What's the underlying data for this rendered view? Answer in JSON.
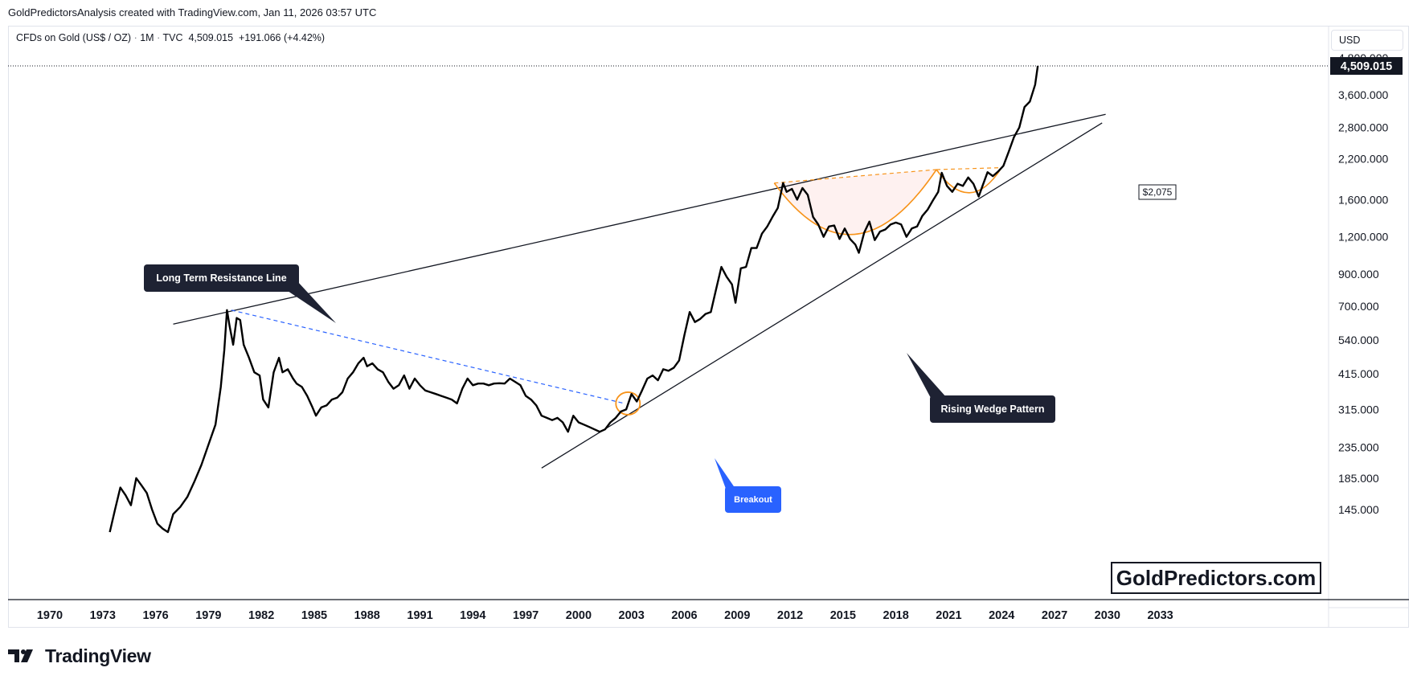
{
  "header": {
    "credit": "GoldPredictorsAnalysis created with TradingView.com, Jan 11, 2026 03:57 UTC"
  },
  "symbol_bar": {
    "name": "CFDs on Gold (US$ / OZ)",
    "interval": "1M",
    "source": "TVC",
    "last_price": "4,509.015",
    "change": "+191.066",
    "change_pct": "(+4.42%)"
  },
  "currency_button": "USD",
  "watermark": "GoldPredictors.com",
  "footer": {
    "brand": "TradingView"
  },
  "colors": {
    "price_line": "#000000",
    "trendline": "#131722",
    "dashed_blue": "#2962ff",
    "cup_orange": "#f7931a",
    "cup_fill": "#fde8e6",
    "callout_dark": "#1e2233",
    "callout_blue": "#2962ff"
  },
  "chart_data": {
    "type": "line",
    "scale": "log",
    "y_ticks": [
      "4,800.000",
      "3,600.000",
      "2,800.000",
      "2,200.000",
      "1,600.000",
      "1,200.000",
      "900.000",
      "700.000",
      "540.000",
      "415.000",
      "315.000",
      "235.000",
      "185.000",
      "145.000"
    ],
    "y_tick_values": [
      4800,
      3600,
      2800,
      2200,
      1600,
      1200,
      900,
      700,
      540,
      415,
      315,
      235,
      185,
      145
    ],
    "x_ticks": [
      "1970",
      "1973",
      "1976",
      "1979",
      "1982",
      "1985",
      "1988",
      "1991",
      "1994",
      "1997",
      "2000",
      "2003",
      "2006",
      "2009",
      "2012",
      "2015",
      "2018",
      "2021",
      "2024",
      "2027",
      "2030",
      "2033"
    ],
    "x_tick_years": [
      1970,
      1973,
      1976,
      1979,
      1982,
      1985,
      1988,
      1991,
      1994,
      1997,
      2000,
      2003,
      2006,
      2009,
      2012,
      2015,
      2018,
      2021,
      2024,
      2027,
      2030,
      2033
    ],
    "ylim": [
      118,
      5000
    ],
    "xlim": [
      1967.6,
      2034.6
    ],
    "last_price_label": "4,509.015",
    "last_price": 4509.015,
    "series": [
      {
        "points": [
          [
            1973.4,
            118
          ],
          [
            1973.7,
            145
          ],
          [
            1974.0,
            172
          ],
          [
            1974.3,
            162
          ],
          [
            1974.6,
            150
          ],
          [
            1974.9,
            185
          ],
          [
            1975.2,
            175
          ],
          [
            1975.5,
            165
          ],
          [
            1975.8,
            145
          ],
          [
            1976.1,
            130
          ],
          [
            1976.4,
            125
          ],
          [
            1976.7,
            118
          ],
          [
            1977.0,
            140
          ],
          [
            1977.4,
            148
          ],
          [
            1977.8,
            160
          ],
          [
            1978.2,
            180
          ],
          [
            1978.6,
            205
          ],
          [
            1979.0,
            240
          ],
          [
            1979.4,
            280
          ],
          [
            1979.7,
            375
          ],
          [
            1979.9,
            500
          ],
          [
            1980.05,
            680
          ],
          [
            1980.2,
            600
          ],
          [
            1980.4,
            520
          ],
          [
            1980.6,
            640
          ],
          [
            1980.8,
            630
          ],
          [
            1981.0,
            520
          ],
          [
            1981.3,
            470
          ],
          [
            1981.6,
            420
          ],
          [
            1981.9,
            410
          ],
          [
            1982.1,
            340
          ],
          [
            1982.4,
            320
          ],
          [
            1982.7,
            420
          ],
          [
            1983.0,
            470
          ],
          [
            1983.2,
            420
          ],
          [
            1983.5,
            430
          ],
          [
            1983.8,
            400
          ],
          [
            1984.0,
            385
          ],
          [
            1984.3,
            375
          ],
          [
            1984.6,
            350
          ],
          [
            1984.9,
            320
          ],
          [
            1985.1,
            300
          ],
          [
            1985.4,
            320
          ],
          [
            1985.7,
            325
          ],
          [
            1986.0,
            340
          ],
          [
            1986.3,
            345
          ],
          [
            1986.6,
            360
          ],
          [
            1986.9,
            400
          ],
          [
            1987.2,
            420
          ],
          [
            1987.5,
            450
          ],
          [
            1987.8,
            470
          ],
          [
            1988.0,
            440
          ],
          [
            1988.3,
            450
          ],
          [
            1988.6,
            430
          ],
          [
            1988.9,
            420
          ],
          [
            1989.2,
            390
          ],
          [
            1989.5,
            370
          ],
          [
            1989.8,
            380
          ],
          [
            1990.1,
            410
          ],
          [
            1990.4,
            370
          ],
          [
            1990.7,
            400
          ],
          [
            1991.0,
            380
          ],
          [
            1991.3,
            365
          ],
          [
            1991.6,
            360
          ],
          [
            1991.9,
            355
          ],
          [
            1992.2,
            350
          ],
          [
            1992.5,
            345
          ],
          [
            1992.8,
            340
          ],
          [
            1993.1,
            330
          ],
          [
            1993.4,
            370
          ],
          [
            1993.7,
            400
          ],
          [
            1994.0,
            380
          ],
          [
            1994.3,
            385
          ],
          [
            1994.6,
            385
          ],
          [
            1994.9,
            380
          ],
          [
            1995.2,
            385
          ],
          [
            1995.5,
            386
          ],
          [
            1995.8,
            385
          ],
          [
            1996.1,
            400
          ],
          [
            1996.4,
            390
          ],
          [
            1996.7,
            380
          ],
          [
            1997.0,
            350
          ],
          [
            1997.3,
            340
          ],
          [
            1997.6,
            325
          ],
          [
            1997.9,
            300
          ],
          [
            1998.2,
            295
          ],
          [
            1998.5,
            290
          ],
          [
            1998.8,
            295
          ],
          [
            1999.1,
            285
          ],
          [
            1999.4,
            265
          ],
          [
            1999.7,
            300
          ],
          [
            2000.0,
            285
          ],
          [
            2000.3,
            280
          ],
          [
            2000.6,
            275
          ],
          [
            2000.9,
            270
          ],
          [
            2001.2,
            265
          ],
          [
            2001.5,
            270
          ],
          [
            2001.8,
            285
          ],
          [
            2002.1,
            295
          ],
          [
            2002.4,
            310
          ],
          [
            2002.7,
            315
          ],
          [
            2003.0,
            355
          ],
          [
            2003.3,
            335
          ],
          [
            2003.6,
            365
          ],
          [
            2003.9,
            400
          ],
          [
            2004.2,
            410
          ],
          [
            2004.5,
            395
          ],
          [
            2004.8,
            430
          ],
          [
            2005.1,
            425
          ],
          [
            2005.4,
            435
          ],
          [
            2005.7,
            460
          ],
          [
            2006.0,
            560
          ],
          [
            2006.3,
            670
          ],
          [
            2006.6,
            620
          ],
          [
            2006.9,
            635
          ],
          [
            2007.2,
            660
          ],
          [
            2007.5,
            670
          ],
          [
            2007.8,
            800
          ],
          [
            2008.1,
            950
          ],
          [
            2008.4,
            880
          ],
          [
            2008.7,
            830
          ],
          [
            2008.9,
            720
          ],
          [
            2009.2,
            940
          ],
          [
            2009.5,
            950
          ],
          [
            2009.8,
            1100
          ],
          [
            2010.1,
            1100
          ],
          [
            2010.4,
            1230
          ],
          [
            2010.7,
            1300
          ],
          [
            2011.0,
            1400
          ],
          [
            2011.3,
            1500
          ],
          [
            2011.6,
            1820
          ],
          [
            2011.8,
            1700
          ],
          [
            2012.1,
            1740
          ],
          [
            2012.4,
            1600
          ],
          [
            2012.7,
            1750
          ],
          [
            2013.0,
            1660
          ],
          [
            2013.3,
            1400
          ],
          [
            2013.6,
            1320
          ],
          [
            2013.9,
            1200
          ],
          [
            2014.2,
            1300
          ],
          [
            2014.5,
            1310
          ],
          [
            2014.8,
            1180
          ],
          [
            2015.1,
            1280
          ],
          [
            2015.4,
            1180
          ],
          [
            2015.7,
            1130
          ],
          [
            2015.9,
            1060
          ],
          [
            2016.2,
            1240
          ],
          [
            2016.5,
            1350
          ],
          [
            2016.8,
            1170
          ],
          [
            2017.1,
            1250
          ],
          [
            2017.4,
            1270
          ],
          [
            2017.7,
            1320
          ],
          [
            2018.0,
            1340
          ],
          [
            2018.3,
            1320
          ],
          [
            2018.6,
            1200
          ],
          [
            2018.9,
            1280
          ],
          [
            2019.2,
            1300
          ],
          [
            2019.5,
            1410
          ],
          [
            2019.8,
            1480
          ],
          [
            2020.1,
            1590
          ],
          [
            2020.4,
            1700
          ],
          [
            2020.6,
            1970
          ],
          [
            2020.9,
            1780
          ],
          [
            2021.2,
            1700
          ],
          [
            2021.5,
            1810
          ],
          [
            2021.8,
            1780
          ],
          [
            2022.1,
            1900
          ],
          [
            2022.4,
            1810
          ],
          [
            2022.7,
            1640
          ],
          [
            2022.9,
            1770
          ],
          [
            2023.2,
            1980
          ],
          [
            2023.5,
            1920
          ],
          [
            2023.8,
            1990
          ],
          [
            2024.1,
            2080
          ],
          [
            2024.4,
            2320
          ],
          [
            2024.7,
            2600
          ],
          [
            2025.0,
            2800
          ],
          [
            2025.3,
            3280
          ],
          [
            2025.6,
            3420
          ],
          [
            2025.9,
            3900
          ],
          [
            2026.05,
            4509
          ]
        ]
      }
    ],
    "annotations": [
      {
        "label": "Long Term Resistance Line"
      },
      {
        "label": "Rising Wedge Pattern"
      },
      {
        "label": "Breakout"
      },
      {
        "label": "$2,075"
      }
    ],
    "trendlines": {
      "resistance": [
        [
          1977.0,
          610
        ],
        [
          2029.9,
          3100
        ]
      ],
      "support": [
        [
          1997.9,
          200
        ],
        [
          2029.7,
          2900
        ]
      ],
      "dashed_downtrend": [
        [
          1980.3,
          680
        ],
        [
          2002.6,
          330
        ]
      ],
      "cup_rim": [
        [
          2011.1,
          1820
        ],
        [
          2020.3,
          2020
        ]
      ],
      "handle_rim": [
        [
          2020.3,
          2020
        ],
        [
          2024.0,
          2050
        ]
      ]
    },
    "grid": false,
    "legend": "none"
  }
}
